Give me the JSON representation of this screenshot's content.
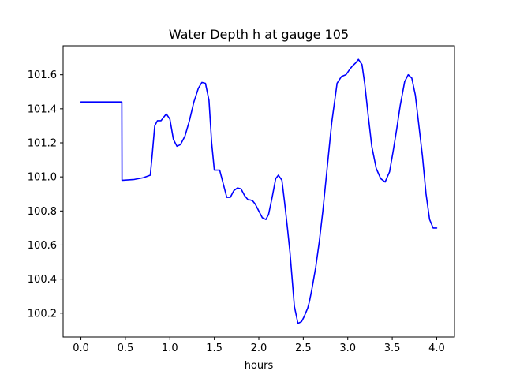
{
  "chart_data": {
    "type": "line",
    "title": "Water Depth h at gauge 105",
    "xlabel": "hours",
    "ylabel": "",
    "xlim": [
      -0.2,
      4.2
    ],
    "ylim": [
      100.06,
      101.77
    ],
    "xticks": [
      0.0,
      0.5,
      1.0,
      1.5,
      2.0,
      2.5,
      3.0,
      3.5,
      4.0
    ],
    "xtick_labels": [
      "0.0",
      "0.5",
      "1.0",
      "1.5",
      "2.0",
      "2.5",
      "3.0",
      "3.5",
      "4.0"
    ],
    "yticks": [
      100.2,
      100.4,
      100.6,
      100.8,
      101.0,
      101.2,
      101.4,
      101.6
    ],
    "ytick_labels": [
      "100.2",
      "100.4",
      "100.6",
      "100.8",
      "101.0",
      "101.2",
      "101.4",
      "101.6"
    ],
    "grid": false,
    "series": [
      {
        "color": "#0000ff",
        "x": [
          0.0,
          0.2,
          0.3,
          0.46,
          0.462,
          0.47,
          0.6,
          0.7,
          0.78,
          0.8,
          0.83,
          0.86,
          0.9,
          0.93,
          0.96,
          1.0,
          1.04,
          1.08,
          1.12,
          1.17,
          1.22,
          1.27,
          1.32,
          1.36,
          1.4,
          1.44,
          1.47,
          1.5,
          1.53,
          1.56,
          1.6,
          1.64,
          1.68,
          1.72,
          1.76,
          1.8,
          1.84,
          1.88,
          1.9,
          1.93,
          1.96,
          2.0,
          2.04,
          2.08,
          2.11,
          2.15,
          2.19,
          2.22,
          2.26,
          2.29,
          2.32,
          2.35,
          2.4,
          2.44,
          2.48,
          2.51,
          2.55,
          2.57,
          2.6,
          2.64,
          2.68,
          2.72,
          2.77,
          2.82,
          2.88,
          2.93,
          2.98,
          3.02,
          3.05,
          3.09,
          3.12,
          3.16,
          3.19,
          3.23,
          3.27,
          3.32,
          3.37,
          3.42,
          3.47,
          3.51,
          3.55,
          3.59,
          3.64,
          3.68,
          3.72,
          3.76,
          3.8,
          3.84,
          3.88,
          3.92,
          3.96,
          4.0
        ],
        "y": [
          101.44,
          101.44,
          101.44,
          101.44,
          100.98,
          100.98,
          100.985,
          100.995,
          101.01,
          101.12,
          101.3,
          101.33,
          101.33,
          101.35,
          101.37,
          101.34,
          101.22,
          101.18,
          101.19,
          101.24,
          101.33,
          101.44,
          101.52,
          101.555,
          101.55,
          101.45,
          101.2,
          101.04,
          101.04,
          101.04,
          100.96,
          100.88,
          100.88,
          100.92,
          100.935,
          100.93,
          100.89,
          100.865,
          100.865,
          100.86,
          100.84,
          100.8,
          100.76,
          100.75,
          100.78,
          100.88,
          100.99,
          101.01,
          100.98,
          100.85,
          100.71,
          100.56,
          100.24,
          100.14,
          100.15,
          100.18,
          100.23,
          100.27,
          100.35,
          100.47,
          100.62,
          100.8,
          101.06,
          101.32,
          101.55,
          101.59,
          101.6,
          101.63,
          101.65,
          101.67,
          101.69,
          101.66,
          101.55,
          101.36,
          101.18,
          101.05,
          100.99,
          100.97,
          101.03,
          101.15,
          101.28,
          101.42,
          101.56,
          101.6,
          101.58,
          101.48,
          101.3,
          101.12,
          100.9,
          100.75,
          100.7,
          100.7
        ]
      }
    ]
  }
}
